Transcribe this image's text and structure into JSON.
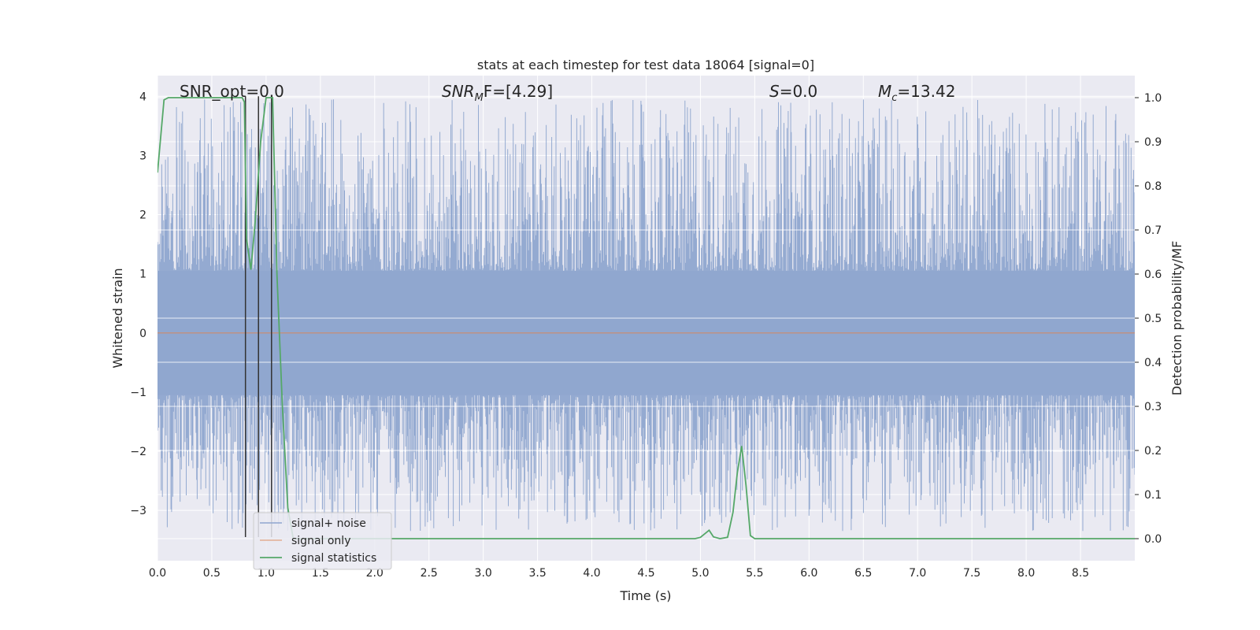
{
  "chart_data": {
    "type": "line",
    "title": "stats at each timestep for test data 18064 [signal=0]",
    "xlabel": "Time (s)",
    "ylabel_left": "Whitened strain",
    "ylabel_right": "Detection probability/MF",
    "xlim": [
      0,
      9.0
    ],
    "ylim_left": [
      -3.85,
      4.35
    ],
    "ylim_right": [
      -0.05,
      1.05
    ],
    "x_ticks": [
      "0.0",
      "0.5",
      "1.0",
      "1.5",
      "2.0",
      "2.5",
      "3.0",
      "3.5",
      "4.0",
      "4.5",
      "5.0",
      "5.5",
      "6.0",
      "6.5",
      "7.0",
      "7.5",
      "8.0",
      "8.5"
    ],
    "y_left_ticks": [
      "4",
      "3",
      "2",
      "1",
      "0",
      "−1",
      "−2",
      "−3"
    ],
    "y_right_ticks": [
      "1.0",
      "0.9",
      "0.8",
      "0.7",
      "0.6",
      "0.5",
      "0.4",
      "0.3",
      "0.2",
      "0.1",
      "0.0"
    ],
    "grid": true,
    "legend_placement": "lower-left",
    "annotations": {
      "snr_opt": "SNR_opt=0.0",
      "snr_mf_main": "SNR",
      "snr_mf_sub": "M",
      "snr_mf_rest": "F=[4.29]",
      "s_main": "S",
      "s_rest": "=0.0",
      "mc_main": "M",
      "mc_sub": "c",
      "mc_rest": "=13.42"
    },
    "series": [
      {
        "name": "signal+ noise",
        "axis": "left",
        "color": "#8fa6cf",
        "noise_envelope": {
          "core_low": -1.05,
          "core_high": 1.05,
          "peak_max": 4.0,
          "trough_min": -3.5,
          "x_start": 0.0,
          "x_end": 9.0
        }
      },
      {
        "name": "signal only",
        "axis": "left",
        "color": "#dd8452",
        "x": [
          0.0,
          9.0
        ],
        "y": [
          0.0,
          0.0
        ]
      },
      {
        "name": "signal statistics",
        "axis": "right",
        "color": "#55a868",
        "x": [
          0.0,
          0.06,
          0.1,
          0.2,
          0.3,
          0.4,
          0.5,
          0.6,
          0.7,
          0.78,
          0.8,
          0.82,
          0.86,
          0.9,
          0.95,
          1.0,
          1.02,
          1.06,
          1.1,
          1.15,
          1.2,
          1.25,
          1.3,
          2.0,
          3.0,
          4.0,
          4.5,
          4.95,
          5.0,
          5.05,
          5.08,
          5.12,
          5.18,
          5.25,
          5.3,
          5.34,
          5.38,
          5.42,
          5.46,
          5.5,
          6.0,
          7.0,
          8.0,
          8.5,
          9.0
        ],
        "y": [
          0.83,
          0.995,
          1.0,
          1.0,
          1.0,
          1.0,
          1.0,
          1.0,
          1.0,
          1.0,
          0.99,
          0.68,
          0.61,
          0.72,
          0.9,
          1.0,
          1.0,
          1.0,
          0.6,
          0.3,
          0.07,
          0.0,
          0.0,
          0.0,
          0.0,
          0.0,
          0.0,
          0.0,
          0.003,
          0.013,
          0.019,
          0.004,
          0.0,
          0.003,
          0.06,
          0.15,
          0.21,
          0.12,
          0.007,
          0.0,
          0.0,
          0.0,
          0.0,
          0.0,
          0.0
        ]
      },
      {
        "name": "markers",
        "axis": "left",
        "color": "#333333",
        "type": "vlines",
        "x": [
          0.81,
          0.93,
          1.05
        ],
        "y_ranges": [
          [
            -3.45,
            4.0
          ],
          [
            -3.45,
            4.0
          ],
          [
            -3.45,
            4.0
          ]
        ]
      }
    ]
  }
}
